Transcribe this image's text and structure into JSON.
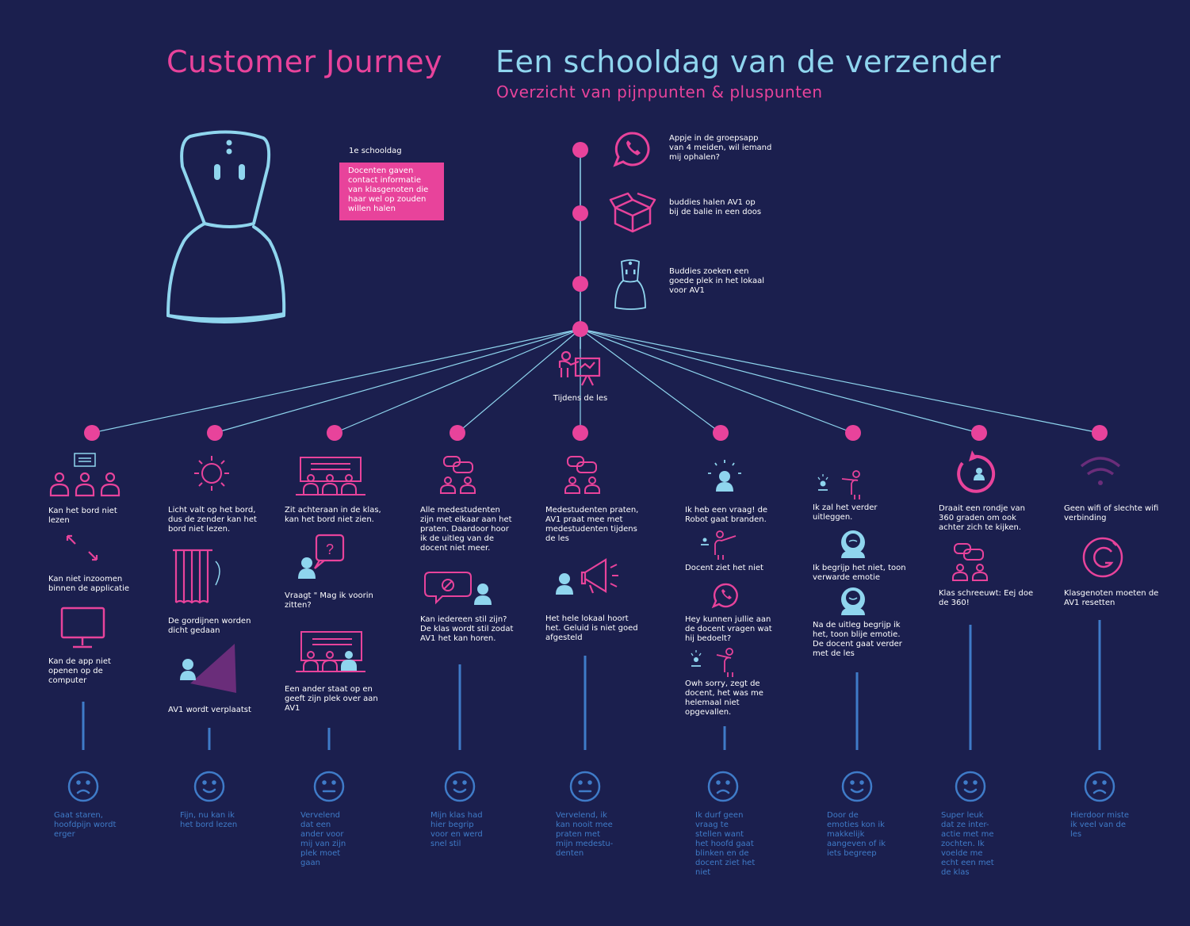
{
  "header": {
    "title_left": "Customer Journey",
    "title_right": "Een schooldag van de verzender",
    "subtitle": "Overzicht van pijnpunten & pluspunten"
  },
  "colors": {
    "background": "#1b1f4e",
    "pink": "#e8439b",
    "light_blue": "#8fd5ee",
    "mood_blue": "#3f7bc8",
    "purple": "#6a2d7a"
  },
  "intro": {
    "label": "1e schooldag",
    "box_text": "Docenten gaven contact informatie van klasgenoten die haar wel op zouden willen halen"
  },
  "timeline": {
    "steps": [
      {
        "icon": "whatsapp-icon",
        "text": "Appje in de groepsapp van 4 meiden, wil iemand mij ophalen?"
      },
      {
        "icon": "box-icon",
        "text": "buddies halen AV1 op bij de balie in een doos"
      },
      {
        "icon": "robot-icon",
        "text": "Buddies zoeken een goede plek in het lokaal voor AV1"
      }
    ],
    "hub_label": "Tijdens de les"
  },
  "columns": [
    {
      "items": [
        "Kan het bord niet lezen",
        "Kan niet inzoomen binnen de applicatie",
        "Kan de app niet openen op de computer"
      ],
      "mood": "sad",
      "mood_text": "Gaat staren, hoofdpijn wordt erger"
    },
    {
      "items": [
        "Licht valt op het bord, dus de zender kan het bord niet lezen.",
        "De gordijnen worden dicht gedaan",
        "AV1 wordt verplaatst"
      ],
      "mood": "happy",
      "mood_text": "Fijn, nu kan ik het bord lezen"
    },
    {
      "items": [
        "Zit achteraan in de klas, kan het bord niet zien.",
        "Vraagt \" Mag ik voorin zitten?",
        "Een ander staat op en geeft zijn plek over aan AV1"
      ],
      "mood": "neutral",
      "mood_text": "Vervelend dat een ander voor mij van zijn plek moet gaan"
    },
    {
      "items": [
        "Alle medestudenten zijn met elkaar aan het praten. Daardoor hoor ik de uitleg van de docent niet meer.",
        "Kan iedereen stil zijn? De klas wordt stil zodat AV1 het kan horen."
      ],
      "mood": "happy",
      "mood_text": "Mijn klas had hier begrip voor en werd snel stil"
    },
    {
      "items": [
        "Medestudenten praten, AV1 praat mee met medestudenten tijdens de les",
        "Het hele lokaal hoort het. Geluid is niet goed afgesteld"
      ],
      "mood": "neutral",
      "mood_text": "Vervelend, ik kan nooit mee praten met mijn medestu-denten"
    },
    {
      "items": [
        "Ik heb een vraag!  de Robot gaat branden.",
        "Docent ziet het niet",
        "Hey kunnen jullie aan de docent vragen wat hij bedoelt?",
        "Owh sorry, zegt de docent, het was me helemaal niet opgevallen."
      ],
      "mood": "sad",
      "mood_text": "Ik durf geen vraag te stellen want het hoofd gaat blinken en de docent ziet het niet"
    },
    {
      "items": [
        "Ik zal het verder uitleggen.",
        "Ik begrijp het niet, toon verwarde emotie",
        "Na de uitleg begrijp ik het, toon blije emotie. De docent gaat verder met de les"
      ],
      "mood": "happy",
      "mood_text": "Door de emoties kon ik makkelijk aangeven of ik iets begreep"
    },
    {
      "items": [
        "Draait een rondje van 360 graden om ook achter zich te kijken.",
        "Klas schreeuwt: Eej doe de 360!"
      ],
      "mood": "happy",
      "mood_text": "Super leuk dat ze inter-actie met me zochten. Ik voelde me echt een met de klas"
    },
    {
      "items": [
        "Geen wifi of slechte wifi verbinding",
        "Klasgenoten moeten de AV1 resetten"
      ],
      "mood": "sad",
      "mood_text": "Hierdoor miste ik veel van de les"
    }
  ]
}
